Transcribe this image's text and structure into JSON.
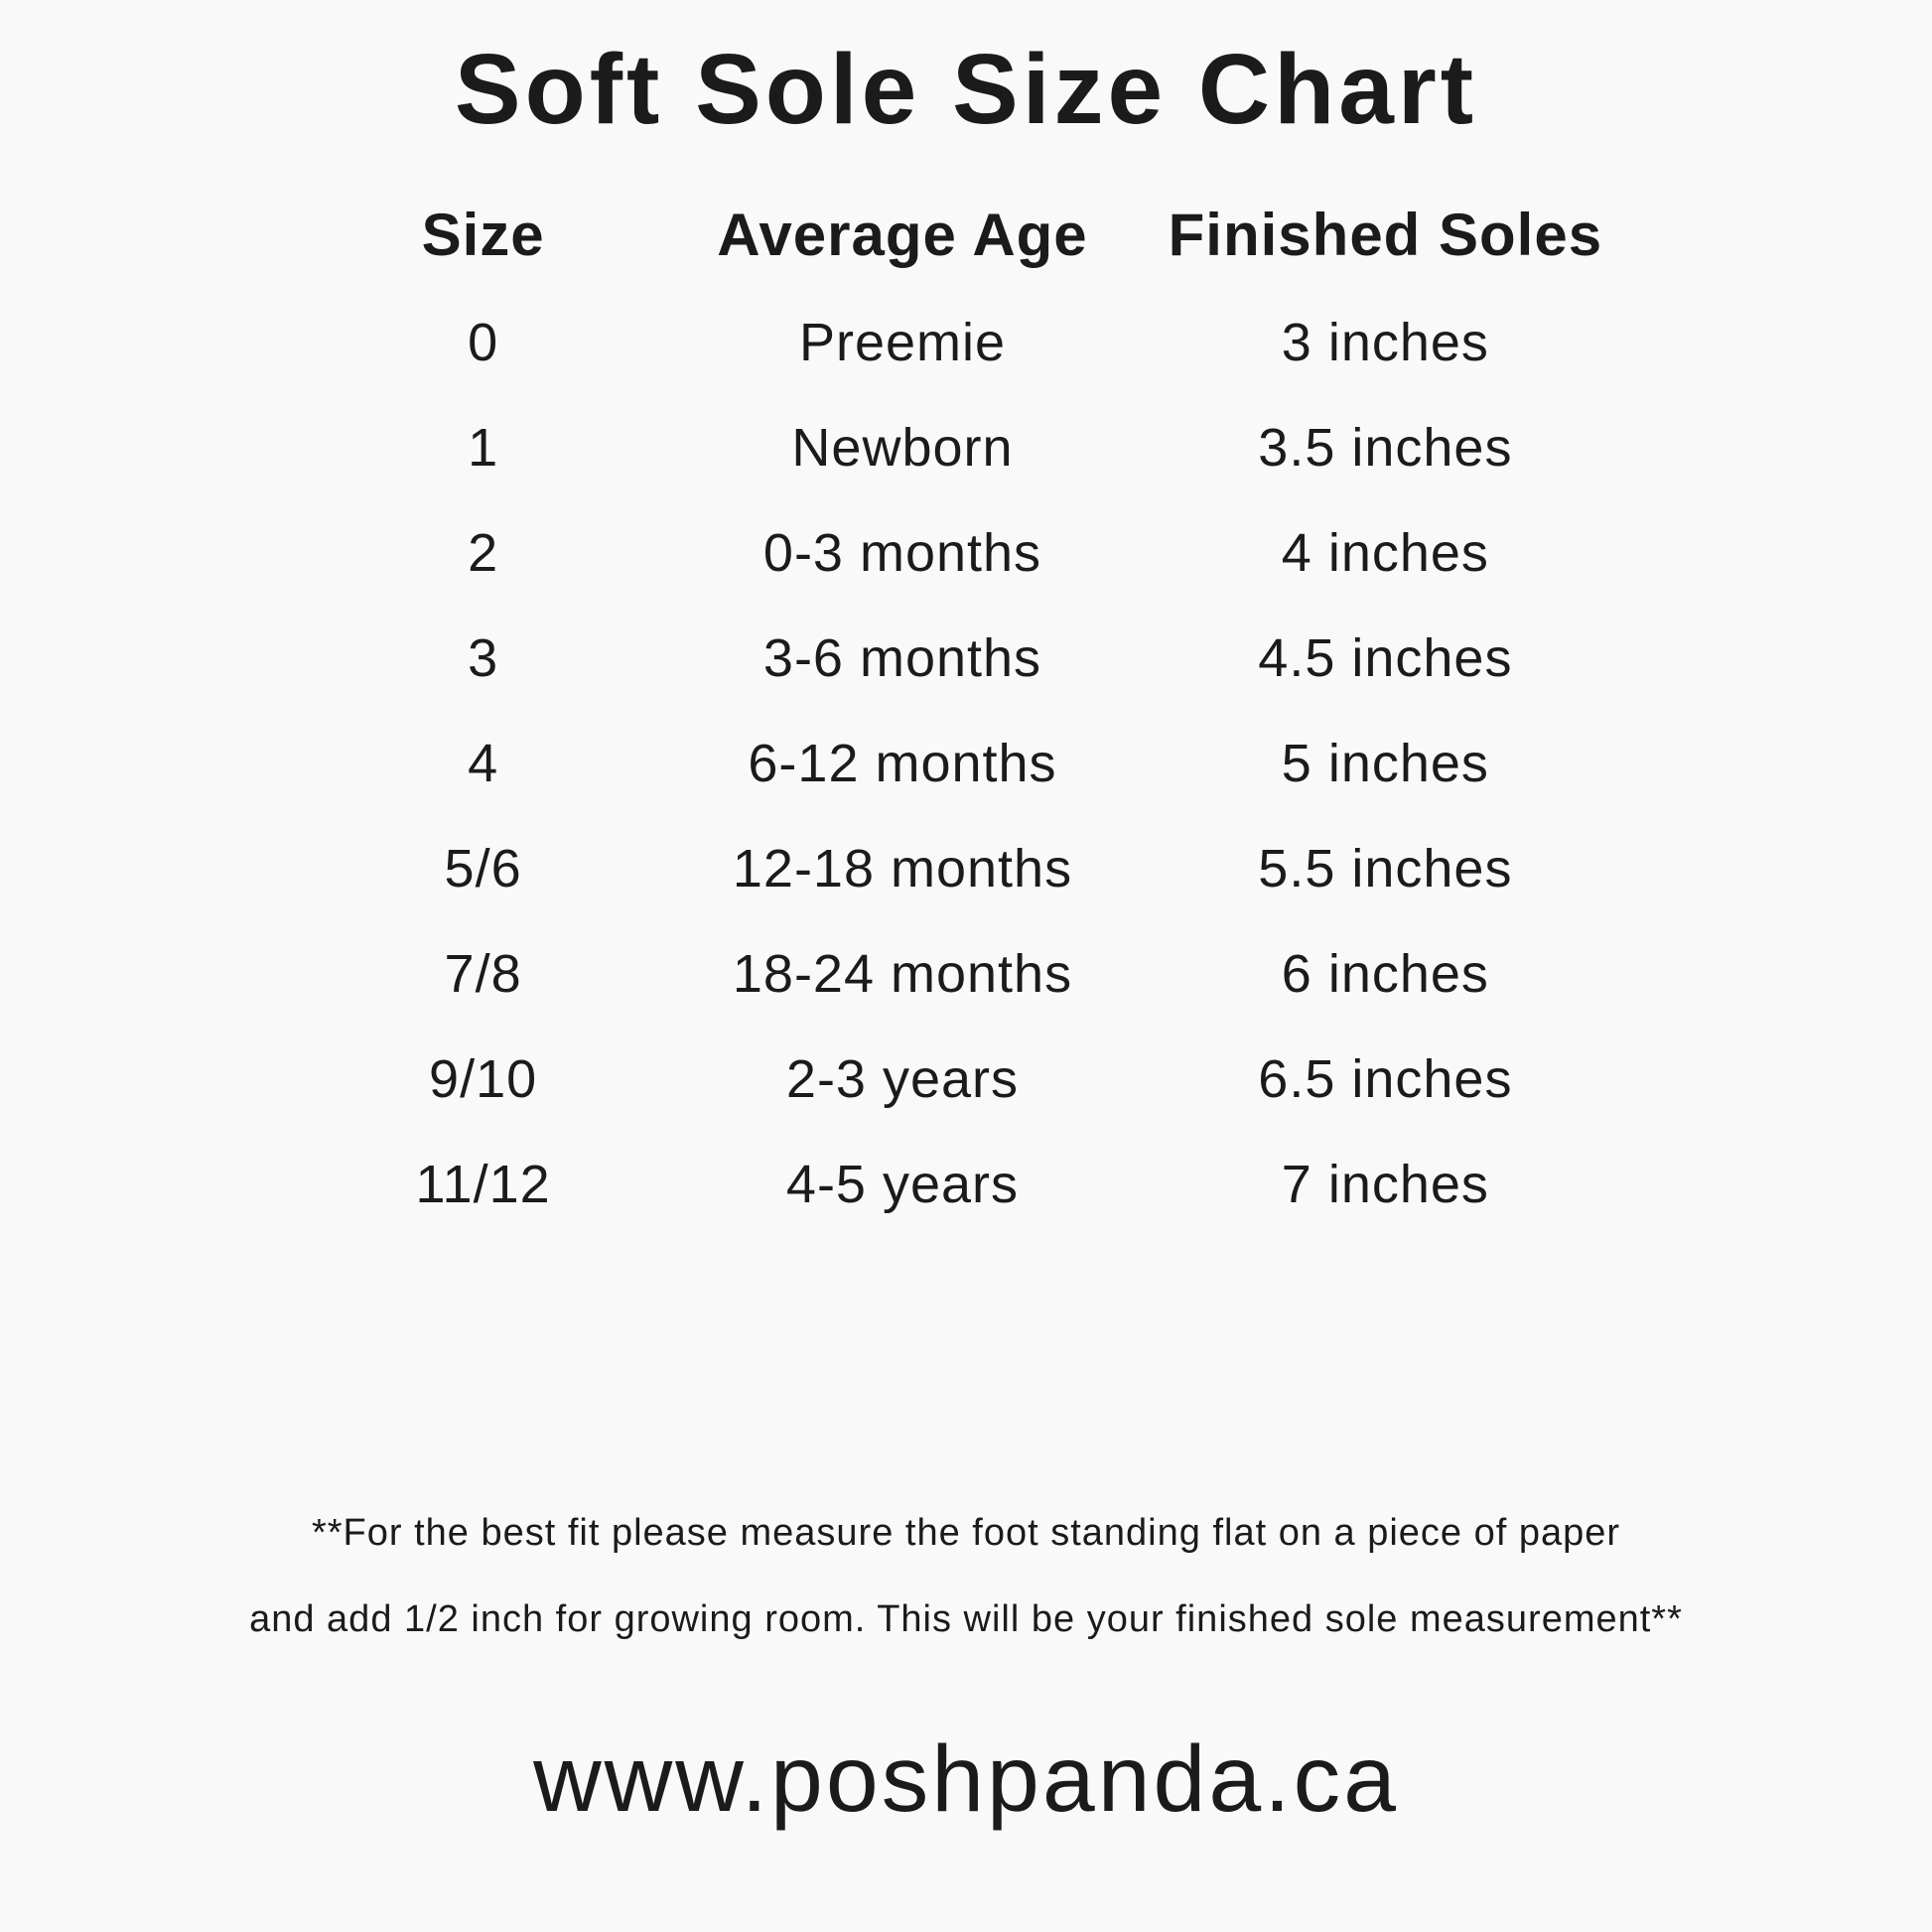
{
  "page": {
    "title": "Soft Sole Size Chart",
    "note_line1": "**For the best fit please measure the foot standing flat on a piece of paper",
    "note_line2": "and add 1/2 inch for growing room. This will be your finished sole measurement**",
    "website": "www.poshpanda.ca"
  },
  "colors": {
    "background": "#f9f9f9",
    "text": "#1b1b1b"
  },
  "chart_data": {
    "type": "table",
    "title": "Soft Sole Size Chart",
    "columns": [
      "Size",
      "Average Age",
      "Finished Soles"
    ],
    "rows": [
      [
        "0",
        "Preemie",
        "3 inches"
      ],
      [
        "1",
        "Newborn",
        "3.5 inches"
      ],
      [
        "2",
        "0-3 months",
        "4 inches"
      ],
      [
        "3",
        "3-6 months",
        "4.5 inches"
      ],
      [
        "4",
        "6-12 months",
        "5 inches"
      ],
      [
        "5/6",
        "12-18 months",
        "5.5 inches"
      ],
      [
        "7/8",
        "18-24 months",
        "6 inches"
      ],
      [
        "9/10",
        "2-3 years",
        "6.5 inches"
      ],
      [
        "11/12",
        "4-5 years",
        "7 inches"
      ]
    ]
  }
}
